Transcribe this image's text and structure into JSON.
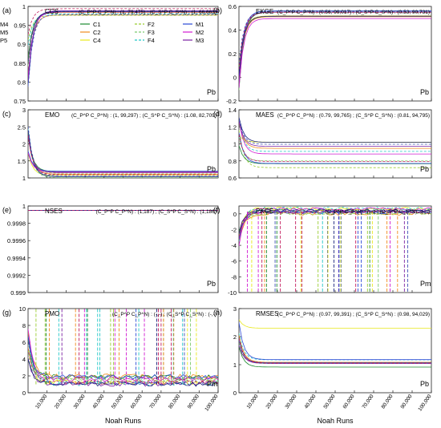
{
  "xlabel": "Noah Runs",
  "x_ticks": [
    "10,000",
    "20,000",
    "30,000",
    "40,000",
    "50,000",
    "60,000",
    "70,000",
    "80,000",
    "90,000",
    "100,000"
  ],
  "legend": [
    {
      "label": "C1",
      "color": "#1b8a2e",
      "dash": false
    },
    {
      "label": "C2",
      "color": "#f08a1c",
      "dash": false
    },
    {
      "label": "C4",
      "color": "#e8e81a",
      "dash": false
    },
    {
      "label": "F2",
      "color": "#9acd32",
      "dash": true
    },
    {
      "label": "F3",
      "color": "#7cc96f",
      "dash": true
    },
    {
      "label": "F4",
      "color": "#22c7c7",
      "dash": true
    },
    {
      "label": "M1",
      "color": "#2a4ad6",
      "dash": false
    },
    {
      "label": "M2",
      "color": "#d11ad1",
      "dash": false
    },
    {
      "label": "M3",
      "color": "#7b1fa2",
      "dash": false
    },
    {
      "label": "M4",
      "color": "#1a237e",
      "dash": false
    },
    {
      "label": "M5",
      "color": "#3f51b5",
      "dash": true
    },
    {
      "label": "P5",
      "color": "#c2185b",
      "dash": true
    }
  ],
  "chart_data": [
    {
      "panel": "(a)",
      "name": "CCS",
      "type": "line",
      "stats": "(C_P^P C_P^N) : (1, 79,475)  ;  (C_S^P C_S^N) : (1, 66,663)",
      "corner": "Pb",
      "ylim": [
        0.75,
        1.0
      ],
      "yticks": [
        "0.75",
        "0.8",
        "0.85",
        "0.9",
        "0.95",
        "1"
      ],
      "plateau": [
        0.975,
        0.995
      ]
    },
    {
      "panel": "(b)",
      "name": "EKGE",
      "type": "line",
      "stats": "(C_P^P C_P^N) : (0.56, 99,017)  ;  (C_S^P C_S^N) : (0.53, 90,731)",
      "corner": "Pb",
      "ylim": [
        -0.2,
        0.6
      ],
      "yticks": [
        "-0.2",
        "0",
        "0.2",
        "0.4",
        "0.6"
      ],
      "plateau": [
        0.48,
        0.58
      ]
    },
    {
      "panel": "(c)",
      "name": "EMO",
      "type": "line",
      "stats": "(C_P^P C_P^N) : (1, 99,297)  ;  (C_S^P C_S^N) : (1.08, 82,709)",
      "corner": "Pb",
      "ylim": [
        1,
        3
      ],
      "yticks": [
        "1",
        "1.5",
        "2",
        "2.5",
        "3"
      ],
      "plateau": [
        1.0,
        1.2
      ]
    },
    {
      "panel": "(d)",
      "name": "MAES",
      "type": "line",
      "stats": "(C_P^P C_P^N) : (0.79, 99,765)  ;  (C_S^P C_S^N) : (0.81, 94,795)",
      "corner": "Pb",
      "ylim": [
        0.6,
        1.4
      ],
      "yticks": [
        "0.6",
        "0.8",
        "1",
        "1.2",
        "1.4"
      ],
      "plateau": [
        0.72,
        1.02
      ]
    },
    {
      "panel": "(e)",
      "name": "NSES",
      "type": "line",
      "stats": "(C_P^P C_P^N) : (1,187)  ;  (C_S^P C_S^N) : (1,186)",
      "corner": "Pb",
      "ylim": [
        0.999,
        1.0
      ],
      "yticks": [
        "0.999",
        "0.9992",
        "0.9994",
        "0.9996",
        "0.9998",
        "1"
      ],
      "plateau": [
        0.99995,
        0.99995
      ]
    },
    {
      "panel": "(f)",
      "name": "PKGE",
      "type": "line",
      "stats": "(C_P^P C_P^N) : (-,-)  ;  (C_S^P C_S^N) : (-,-)",
      "corner": "Pm",
      "ylim": [
        -10,
        1
      ],
      "yticks": [
        "-10",
        "-8",
        "-6",
        "-4",
        "-2",
        "0"
      ],
      "plateau": [
        0.0,
        0.7
      ]
    },
    {
      "panel": "(g)",
      "name": "PMO",
      "type": "line",
      "stats": "(C_P^P C_P^N) : (-,-)  ;  (C_S^P C_S^N) : (-,-)",
      "corner": "Pm",
      "ylim": [
        0,
        10
      ],
      "yticks": [
        "0",
        "2",
        "4",
        "6",
        "8",
        "10"
      ],
      "plateau": [
        1.0,
        2.0
      ]
    },
    {
      "panel": "(h)",
      "name": "RMSES",
      "type": "line",
      "stats": "(C_P^P C_P^N) : (0.97, 99,391)  ;  (C_S^P C_S^N) : (0.98, 94,029)",
      "corner": "Pb",
      "ylim": [
        0,
        3
      ],
      "yticks": [
        "0",
        "1",
        "2",
        "3"
      ],
      "plateau": [
        0.9,
        1.2
      ]
    }
  ]
}
